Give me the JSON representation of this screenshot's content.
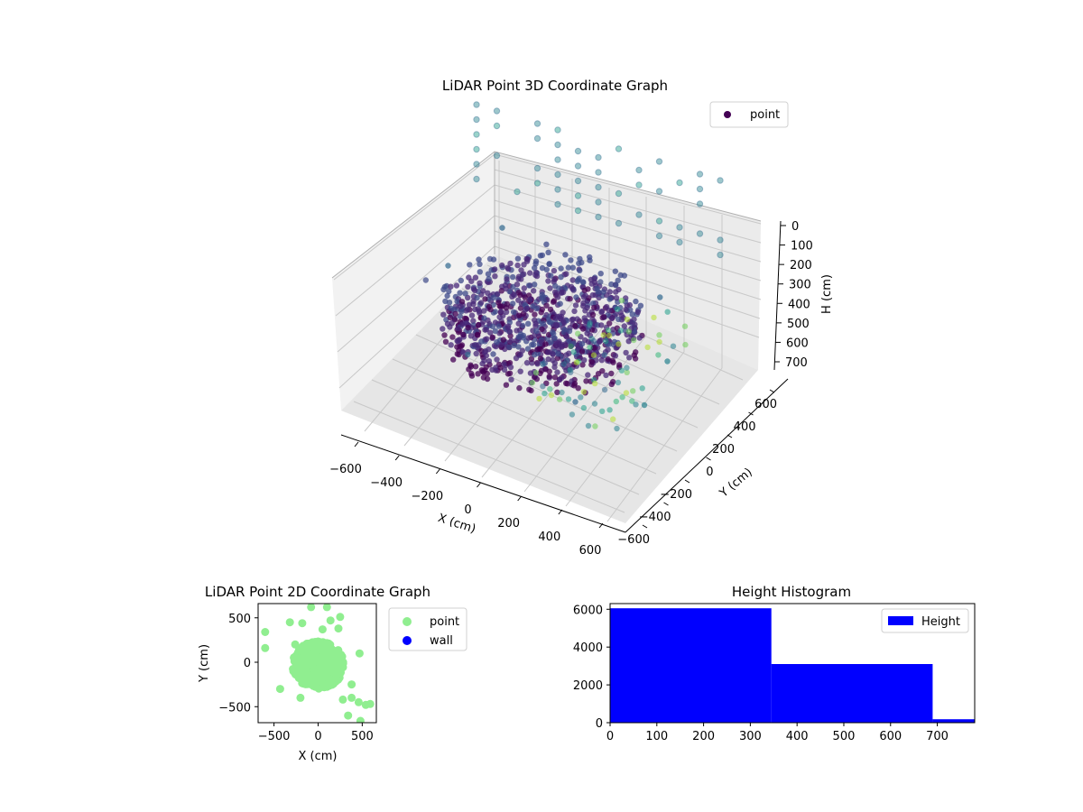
{
  "chart_data": [
    {
      "type": "scatter3d",
      "title": "LiDAR Point 3D Coordinate Graph",
      "xlabel": "X (cm)",
      "ylabel": "Y (cm)",
      "zlabel": "H (cm)",
      "xticks": [
        "−600",
        "−400",
        "−200",
        "0",
        "200",
        "400",
        "600"
      ],
      "yticks": [
        "−600",
        "−400",
        "−200",
        "0",
        "200",
        "400",
        "600"
      ],
      "zticks": [
        "0",
        "100",
        "200",
        "300",
        "400",
        "500",
        "600",
        "700"
      ],
      "xlim": [
        -650,
        650
      ],
      "ylim": [
        -650,
        650
      ],
      "zlim": [
        0,
        780
      ],
      "z_axis_inverted": true,
      "colormap": "viridis",
      "series": [
        {
          "name": "point"
        }
      ],
      "legend_position": "upper right",
      "dense_cluster": {
        "x_range": [
          -450,
          450
        ],
        "y_range": [
          -450,
          450
        ],
        "h_range": [
          0,
          320
        ]
      },
      "outliers": [
        {
          "x": -500,
          "y": -150,
          "h": 350
        },
        {
          "x": -300,
          "y": 100,
          "h": 300
        },
        {
          "x": 150,
          "y": 300,
          "h": 420
        },
        {
          "x": 250,
          "y": -300,
          "h": 500
        },
        {
          "x": 400,
          "y": -500,
          "h": 550
        },
        {
          "x": -200,
          "y": -350,
          "h": 600
        },
        {
          "x": 100,
          "y": -200,
          "h": 650
        },
        {
          "x": 550,
          "y": 150,
          "h": 700
        },
        {
          "x": 600,
          "y": -200,
          "h": 720
        },
        {
          "x": -600,
          "y": 300,
          "h": 650
        },
        {
          "x": -450,
          "y": 550,
          "h": 500
        },
        {
          "x": 350,
          "y": 500,
          "h": 600
        }
      ]
    },
    {
      "type": "scatter",
      "title": "LiDAR Point 2D Coordinate Graph",
      "xlabel": "X (cm)",
      "ylabel": "Y (cm)",
      "xticks": [
        "−500",
        "0",
        "500"
      ],
      "yticks": [
        "500",
        "0",
        "−500"
      ],
      "xlim": [
        -680,
        660
      ],
      "ylim": [
        -680,
        660
      ],
      "legend_position": "outside right",
      "series": [
        {
          "name": "point",
          "color": "#90ee90",
          "cluster": {
            "center": [
              0,
              -30
            ],
            "radius_x": 470,
            "radius_y": 430
          },
          "outliers": [
            [
              -600,
              340
            ],
            [
              -600,
              160
            ],
            [
              -320,
              450
            ],
            [
              -180,
              440
            ],
            [
              -80,
              620
            ],
            [
              100,
              620
            ],
            [
              -260,
              200
            ],
            [
              50,
              370
            ],
            [
              230,
              380
            ],
            [
              250,
              510
            ],
            [
              140,
              470
            ],
            [
              380,
              -400
            ],
            [
              460,
              -450
            ],
            [
              540,
              -480
            ],
            [
              590,
              -470
            ],
            [
              480,
              -660
            ],
            [
              340,
              -600
            ],
            [
              -430,
              -300
            ],
            [
              -200,
              -400
            ],
            [
              280,
              -420
            ],
            [
              470,
              100
            ],
            [
              380,
              -250
            ]
          ]
        },
        {
          "name": "wall",
          "color": "#0000ff",
          "points": []
        }
      ]
    },
    {
      "type": "bar",
      "title": "Height Histogram",
      "xlabel": "",
      "ylabel": "",
      "xticks": [
        "0",
        "100",
        "200",
        "300",
        "400",
        "500",
        "600",
        "700"
      ],
      "yticks": [
        "0",
        "2000",
        "4000",
        "6000"
      ],
      "xlim": [
        0,
        780
      ],
      "ylim": [
        0,
        6300
      ],
      "legend_position": "upper right",
      "series": [
        {
          "name": "Height",
          "color": "#0000ff"
        }
      ],
      "bins": [
        {
          "x0": 0,
          "x1": 345,
          "count": 6050
        },
        {
          "x0": 345,
          "x1": 690,
          "count": 3100
        },
        {
          "x0": 690,
          "x1": 780,
          "count": 180
        }
      ]
    }
  ]
}
